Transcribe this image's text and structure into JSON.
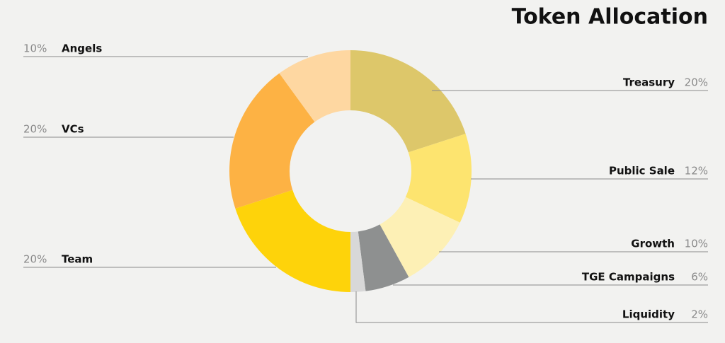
{
  "chart_data": {
    "type": "donut",
    "title": "Token Allocation",
    "categories": [
      "Treasury",
      "Public Sale",
      "Growth",
      "TGE Campaigns",
      "Liquidity",
      "Team",
      "VCs",
      "Angels"
    ],
    "values": [
      20,
      12,
      10,
      6,
      2,
      20,
      20,
      10
    ],
    "value_labels": [
      "20%",
      "12%",
      "10%",
      "6%",
      "2%",
      "20%",
      "20%",
      "10%"
    ],
    "colors": [
      "#ddc76a",
      "#fde46f",
      "#fdf0b5",
      "#8e9090",
      "#d8d8d8",
      "#fed30a",
      "#fdb244",
      "#fed7a1"
    ]
  }
}
